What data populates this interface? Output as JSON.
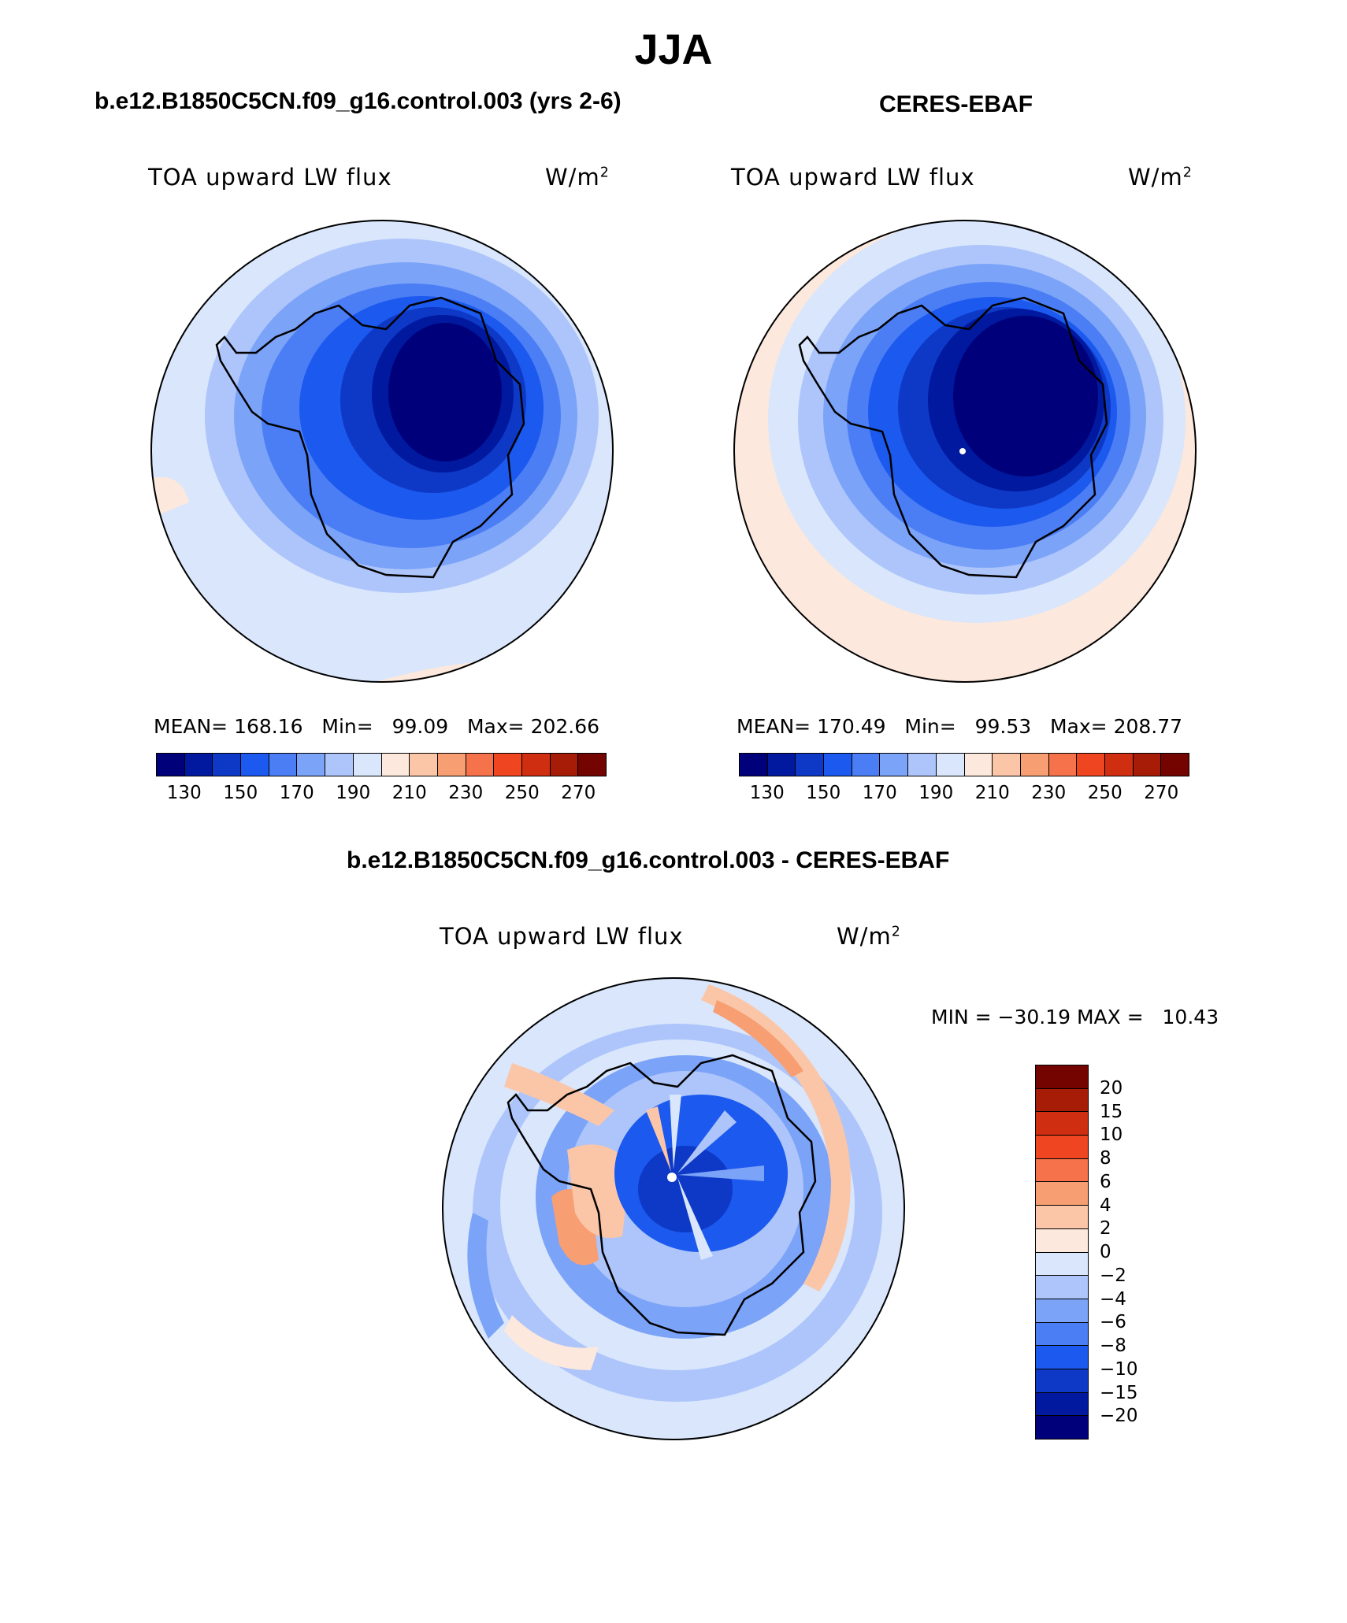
{
  "season_title": "JJA",
  "colors": {
    "seq_palette": [
      "#00007a",
      "#00199e",
      "#0d39c6",
      "#1c59ee",
      "#4b7ef5",
      "#7ba3f8",
      "#adc5fa",
      "#d9e6fc",
      "#fce8dc",
      "#fbc6a8",
      "#f79f73",
      "#f5724a",
      "#ef4520",
      "#cf2e10",
      "#a71c06",
      "#740400"
    ],
    "diff_palette": [
      "#00007a",
      "#00199e",
      "#0d39c6",
      "#1c59ee",
      "#4b7ef5",
      "#7ba3f8",
      "#adc5fa",
      "#d9e6fc",
      "#fce8dc",
      "#fbc6a8",
      "#f79f73",
      "#f5724a",
      "#ef4520",
      "#cf2e10",
      "#a71c06",
      "#740400"
    ]
  },
  "model_panel": {
    "title": "b.e12.B1850C5CN.f09_g16.control.003 (yrs 2-6)",
    "variable": "TOA upward LW flux",
    "units_base": "W/m",
    "units_exp": "2",
    "mean_label": "MEAN=",
    "mean": "168.16",
    "min_label": "Min=",
    "min": "99.09",
    "max_label": "Max=",
    "max": "202.66",
    "ticks": [
      "130",
      "150",
      "170",
      "190",
      "210",
      "230",
      "250",
      "270"
    ]
  },
  "obs_panel": {
    "title": "CERES-EBAF",
    "variable": "TOA upward LW flux",
    "units_base": "W/m",
    "units_exp": "2",
    "mean_label": "MEAN=",
    "mean": "170.49",
    "min_label": "Min=",
    "min": "99.53",
    "max_label": "Max=",
    "max": "208.77",
    "ticks": [
      "130",
      "150",
      "170",
      "190",
      "210",
      "230",
      "250",
      "270"
    ]
  },
  "diff_panel": {
    "title": "b.e12.B1850C5CN.f09_g16.control.003 - CERES-EBAF",
    "variable": "TOA upward LW flux",
    "units_base": "W/m",
    "units_exp": "2",
    "min_label": "MIN =",
    "min": "−30.19",
    "max_label": "MAX =",
    "max": "10.43",
    "ticks": [
      "20",
      "15",
      "10",
      "8",
      "6",
      "4",
      "2",
      "0",
      "−2",
      "−4",
      "−6",
      "−8",
      "−10",
      "−15",
      "−20"
    ]
  }
}
